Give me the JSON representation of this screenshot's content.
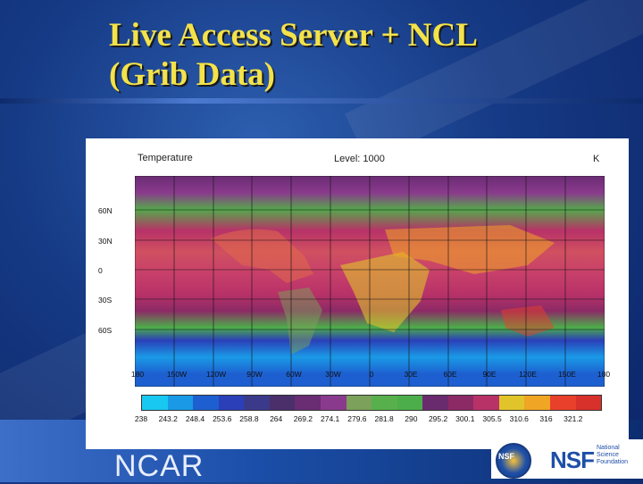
{
  "slide": {
    "title_line1": "Live Access Server + NCL",
    "title_line2": "(Grib Data)",
    "footer_org": "NCAR"
  },
  "figure": {
    "variable_label": "Temperature",
    "level_label": "Level: 1000",
    "units_label": "K",
    "y_ticks": [
      "60N",
      "30N",
      "0",
      "30S",
      "60S"
    ],
    "x_ticks": [
      "180",
      "150W",
      "120W",
      "90W",
      "60W",
      "30W",
      "0",
      "30E",
      "60E",
      "90E",
      "120E",
      "150E",
      "180"
    ],
    "colorbar_labels": [
      "238",
      "243.2",
      "248.4",
      "253.6",
      "258.8",
      "264",
      "269.2",
      "274.1",
      "279.6",
      "281.8",
      "290",
      "295.2",
      "300.1",
      "305.5",
      "310.6",
      "316",
      "321.2"
    ],
    "colorbar_colors": [
      "#18c8f0",
      "#1a9ae6",
      "#1d5fd0",
      "#2a3fb8",
      "#3b3a8a",
      "#4a2f6b",
      "#6a2c73",
      "#8a3a8c",
      "#7ba15a",
      "#58b04c",
      "#4cae4a",
      "#6a2b6e",
      "#8c2a66",
      "#b83268",
      "#e0c42a",
      "#f0a524",
      "#e8402a",
      "#d8302a"
    ]
  },
  "logos": {
    "seal_text": "NSF",
    "nsf_mark": "NSF",
    "nsf_name": "National Science Foundation"
  }
}
